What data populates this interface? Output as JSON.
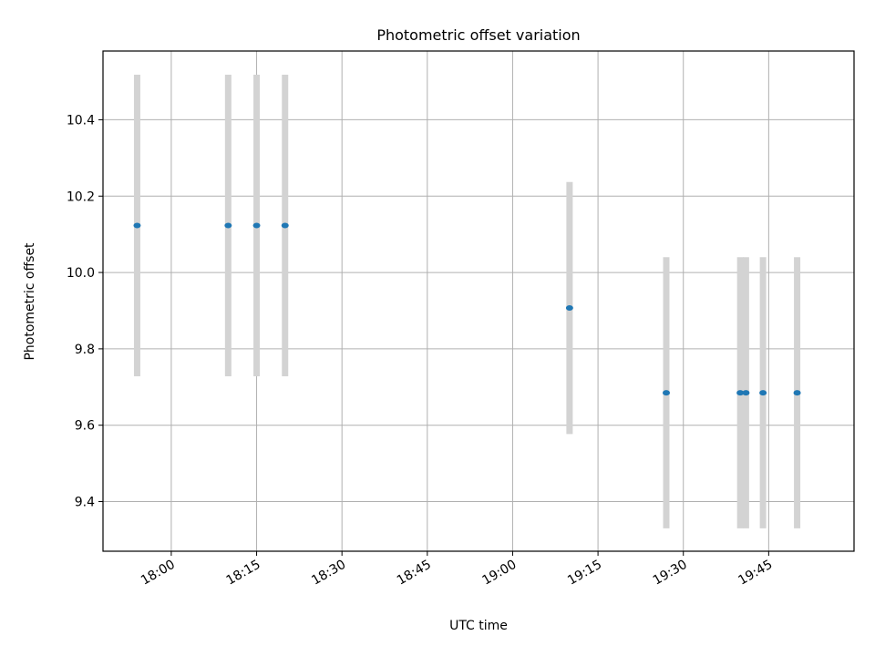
{
  "chart_data": {
    "type": "scatter",
    "title": "Photometric offset variation",
    "xlabel": "UTC time",
    "ylabel": "Photometric offset",
    "x_is_time": true,
    "xlim": [
      "17:48",
      "20:00"
    ],
    "ylim": [
      9.27,
      10.58
    ],
    "xticks": [
      "18:00",
      "18:15",
      "18:30",
      "18:45",
      "19:00",
      "19:15",
      "19:30",
      "19:45"
    ],
    "yticks": [
      "9.4",
      "9.6",
      "9.8",
      "10.0",
      "10.2",
      "10.4"
    ],
    "grid": true,
    "points": [
      {
        "x": "17:54",
        "y": 10.123,
        "err": 0.395
      },
      {
        "x": "18:10",
        "y": 10.123,
        "err": 0.395
      },
      {
        "x": "18:15",
        "y": 10.123,
        "err": 0.395
      },
      {
        "x": "18:20",
        "y": 10.123,
        "err": 0.395
      },
      {
        "x": "19:10",
        "y": 9.907,
        "err": 0.33
      },
      {
        "x": "19:27",
        "y": 9.685,
        "err": 0.355
      },
      {
        "x": "19:40",
        "y": 9.685,
        "err": 0.355
      },
      {
        "x": "19:41",
        "y": 9.685,
        "err": 0.355
      },
      {
        "x": "19:44",
        "y": 9.685,
        "err": 0.355
      },
      {
        "x": "19:50",
        "y": 9.685,
        "err": 0.355
      }
    ],
    "colors": {
      "marker": "#1f77b4",
      "errorbar": "#d3d3d3",
      "grid": "#b0b0b0",
      "axes": "#000000"
    }
  }
}
